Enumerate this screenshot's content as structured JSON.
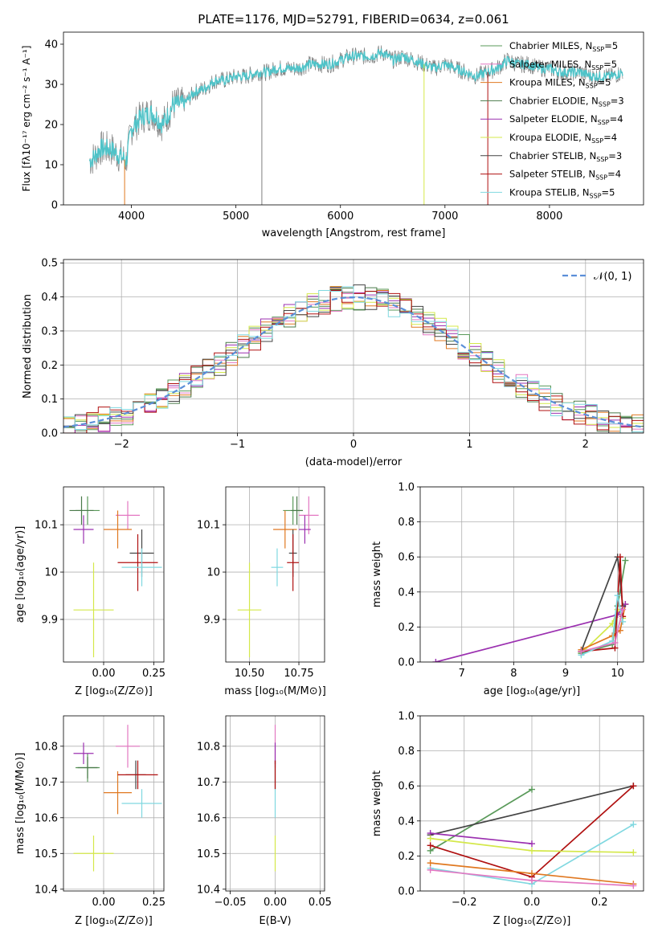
{
  "title": "PLATE=1176, MJD=52791, FIBERID=0634, z=0.061",
  "colors": {
    "Chabrier MILES": "#5a9a5a",
    "Salpeter MILES": "#e377c2",
    "Kroupa MILES": "#e07820",
    "Chabrier ELODIE": "#4a7a4a",
    "Salpeter ELODIE": "#9b30b0",
    "Kroupa ELODIE": "#d4e84a",
    "Chabrier STELIB": "#444444",
    "Salpeter STELIB": "#b01010",
    "Kroupa STELIB": "#80d8e0",
    "model_line": "#4fc3c8",
    "data_line": "#7f7f7f",
    "gaussian": "#5b8fd8"
  },
  "chart_data": [
    {
      "type": "line",
      "id": "spectrum",
      "xlabel": "wavelength [Angstrom, rest frame]",
      "ylabel": "Flux [fλ10⁻¹⁷ erg cm⁻² s⁻¹ A⁻¹]",
      "xlim": [
        3350,
        8900
      ],
      "ylim": [
        0,
        43
      ],
      "xticks": [
        4000,
        5000,
        6000,
        7000,
        8000
      ],
      "yticks": [
        0,
        10,
        20,
        30,
        40
      ],
      "continuum": {
        "x": [
          3600,
          3650,
          3700,
          3800,
          3900,
          3950,
          4000,
          4100,
          4200,
          4300,
          4400,
          4500,
          4600,
          4700,
          4800,
          4900,
          5000,
          5100,
          5200,
          5300,
          5400,
          5500,
          5600,
          5700,
          5800,
          5900,
          6000,
          6100,
          6200,
          6300,
          6400,
          6500,
          6600,
          6700,
          6800,
          6900,
          7000,
          7100,
          7200,
          7300,
          7400,
          7500,
          7600,
          7700,
          7800,
          7900,
          8000,
          8100,
          8200,
          8300,
          8400,
          8500,
          8600,
          8700
        ],
        "y": [
          11,
          12,
          14,
          14,
          12,
          11,
          19,
          22,
          23,
          20,
          25,
          25,
          28,
          29,
          31,
          31,
          32,
          32,
          33,
          33,
          34,
          34,
          34,
          35,
          35,
          35,
          36,
          37,
          37,
          37,
          38,
          36,
          37,
          36,
          35,
          34,
          35,
          34,
          33,
          32,
          33,
          34,
          36,
          35,
          35,
          34,
          34,
          33,
          33,
          33,
          32,
          32,
          32,
          33
        ]
      },
      "series": [
        "Chabrier MILES, N_SSP=5",
        "Salpeter MILES, N_SSP=5",
        "Kroupa MILES, N_SSP=5",
        "Chabrier ELODIE, N_SSP=3",
        "Salpeter ELODIE, N_SSP=4",
        "Kroupa ELODIE, N_SSP=4",
        "Chabrier STELIB, N_SSP=3",
        "Salpeter STELIB, N_SSP=4",
        "Kroupa STELIB, N_SSP=5"
      ],
      "legend": "top-right"
    },
    {
      "type": "histogram",
      "id": "residuals",
      "xlabel": "(data-model)/error",
      "ylabel": "Normed distribution",
      "xlim": [
        -2.5,
        2.5
      ],
      "ylim": [
        0,
        0.51
      ],
      "xticks": [
        -2,
        -1,
        0,
        1,
        2
      ],
      "yticks": [
        0.0,
        0.1,
        0.2,
        0.3,
        0.4,
        0.5
      ],
      "gaussian_label": "𝒩(0, 1)",
      "bin_width": 0.1,
      "grid": true
    },
    {
      "type": "scatter",
      "id": "age_vs_Z",
      "xlabel": "Z [log₁₀(Z/Z⊙)]",
      "ylabel": "age  [log₁₀(age/yr)]",
      "xlim": [
        -0.2,
        0.3
      ],
      "ylim": [
        9.81,
        10.18
      ],
      "xticks": [
        0.0,
        0.25
      ],
      "xticklabels": [
        "0.00",
        "0.25"
      ],
      "yticks": [
        9.9,
        10.0,
        10.1
      ],
      "points": [
        {
          "model": "Chabrier MILES",
          "x": -0.08,
          "y": 10.13,
          "xerr": 0.06,
          "yerr": 0.03
        },
        {
          "model": "Salpeter MILES",
          "x": 0.12,
          "y": 10.12,
          "xerr": 0.06,
          "yerr": 0.03
        },
        {
          "model": "Kroupa MILES",
          "x": 0.07,
          "y": 10.09,
          "xerr": 0.07,
          "yerr": 0.04
        },
        {
          "model": "Chabrier ELODIE",
          "x": -0.11,
          "y": 10.13,
          "xerr": 0.06,
          "yerr": 0.03
        },
        {
          "model": "Salpeter ELODIE",
          "x": -0.1,
          "y": 10.09,
          "xerr": 0.05,
          "yerr": 0.03
        },
        {
          "model": "Kroupa ELODIE",
          "x": -0.05,
          "y": 9.92,
          "xerr": 0.1,
          "yerr": 0.1
        },
        {
          "model": "Chabrier STELIB",
          "x": 0.19,
          "y": 10.04,
          "xerr": 0.06,
          "yerr": 0.05
        },
        {
          "model": "Salpeter STELIB",
          "x": 0.17,
          "y": 10.02,
          "xerr": 0.1,
          "yerr": 0.06
        },
        {
          "model": "Kroupa STELIB",
          "x": 0.19,
          "y": 10.01,
          "xerr": 0.1,
          "yerr": 0.04
        }
      ]
    },
    {
      "type": "scatter",
      "id": "age_vs_mass",
      "xlabel": "mass [log₁₀(M/M⊙)]",
      "xlim": [
        10.38,
        10.88
      ],
      "ylim": [
        9.81,
        10.18
      ],
      "xticks": [
        10.5,
        10.75
      ],
      "xticklabels": [
        "10.50",
        "10.75"
      ],
      "yticks": [
        9.9,
        10.0,
        10.1
      ],
      "points": [
        {
          "model": "Chabrier MILES",
          "x": 10.72,
          "y": 10.13,
          "xerr": 0.05,
          "yerr": 0.03
        },
        {
          "model": "Salpeter MILES",
          "x": 10.8,
          "y": 10.12,
          "xerr": 0.05,
          "yerr": 0.04
        },
        {
          "model": "Kroupa MILES",
          "x": 10.68,
          "y": 10.09,
          "xerr": 0.06,
          "yerr": 0.04
        },
        {
          "model": "Chabrier ELODIE",
          "x": 10.74,
          "y": 10.13,
          "xerr": 0.03,
          "yerr": 0.03
        },
        {
          "model": "Salpeter ELODIE",
          "x": 10.78,
          "y": 10.09,
          "xerr": 0.03,
          "yerr": 0.03
        },
        {
          "model": "Kroupa ELODIE",
          "x": 10.5,
          "y": 9.92,
          "xerr": 0.06,
          "yerr": 0.1
        },
        {
          "model": "Chabrier STELIB",
          "x": 10.72,
          "y": 10.04,
          "xerr": 0.02,
          "yerr": 0.05
        },
        {
          "model": "Salpeter STELIB",
          "x": 10.72,
          "y": 10.02,
          "xerr": 0.03,
          "yerr": 0.06
        },
        {
          "model": "Kroupa STELIB",
          "x": 10.64,
          "y": 10.01,
          "xerr": 0.03,
          "yerr": 0.04
        }
      ]
    },
    {
      "type": "line",
      "id": "weight_vs_age",
      "xlabel": "age  [log₁₀(age/yr)]",
      "ylabel": "mass weight",
      "xlim": [
        6.2,
        10.5
      ],
      "ylim": [
        0,
        1
      ],
      "xticks": [
        7,
        8,
        9,
        10
      ],
      "yticks": [
        0.0,
        0.2,
        0.4,
        0.6,
        0.8,
        1.0
      ],
      "series": [
        {
          "model": "Kroupa ELODIE",
          "x": [
            9.3,
            9.9,
            10.0,
            10.1
          ],
          "y": [
            0.05,
            0.22,
            0.3,
            0.25
          ]
        },
        {
          "model": "Chabrier MILES",
          "x": [
            9.3,
            9.9,
            10.0,
            10.15
          ],
          "y": [
            0.05,
            0.1,
            0.32,
            0.58
          ]
        },
        {
          "model": "Kroupa MILES",
          "x": [
            9.3,
            9.9,
            10.05,
            10.15
          ],
          "y": [
            0.07,
            0.15,
            0.18,
            0.33
          ]
        },
        {
          "model": "Salpeter ELODIE",
          "x": [
            6.5,
            10.0,
            10.15
          ],
          "y": [
            0.0,
            0.27,
            0.33
          ]
        },
        {
          "model": "Chabrier STELIB",
          "x": [
            9.3,
            10.0,
            10.1
          ],
          "y": [
            0.06,
            0.6,
            0.32
          ]
        },
        {
          "model": "Salpeter STELIB",
          "x": [
            9.3,
            9.95,
            10.05,
            10.1
          ],
          "y": [
            0.06,
            0.08,
            0.6,
            0.26
          ]
        },
        {
          "model": "Kroupa STELIB",
          "x": [
            9.3,
            9.9,
            10.0,
            10.1
          ],
          "y": [
            0.04,
            0.12,
            0.38,
            0.23
          ]
        },
        {
          "model": "Salpeter MILES",
          "x": [
            9.3,
            9.95,
            10.1
          ],
          "y": [
            0.06,
            0.11,
            0.3
          ]
        }
      ]
    },
    {
      "type": "scatter",
      "id": "mass_vs_Z",
      "xlabel": "Z [log₁₀(Z/Z⊙)]",
      "ylabel": "mass [log₁₀(M/M⊙)]",
      "xlim": [
        -0.2,
        0.3
      ],
      "ylim": [
        10.395,
        10.885
      ],
      "xticks": [
        0.0,
        0.25
      ],
      "xticklabels": [
        "0.00",
        "0.25"
      ],
      "yticks": [
        10.4,
        10.5,
        10.6,
        10.7,
        10.8
      ],
      "points": [
        {
          "model": "Chabrier MILES",
          "x": -0.08,
          "y": 10.74,
          "xerr": 0.06,
          "yerr": 0.04
        },
        {
          "model": "Salpeter MILES",
          "x": 0.12,
          "y": 10.8,
          "xerr": 0.06,
          "yerr": 0.06
        },
        {
          "model": "Kroupa MILES",
          "x": 0.07,
          "y": 10.67,
          "xerr": 0.07,
          "yerr": 0.06
        },
        {
          "model": "Chabrier ELODIE",
          "x": -0.08,
          "y": 10.74,
          "xerr": 0.05,
          "yerr": 0.03
        },
        {
          "model": "Salpeter ELODIE",
          "x": -0.1,
          "y": 10.78,
          "xerr": 0.05,
          "yerr": 0.03
        },
        {
          "model": "Kroupa ELODIE",
          "x": -0.05,
          "y": 10.5,
          "xerr": 0.1,
          "yerr": 0.05
        },
        {
          "model": "Chabrier STELIB",
          "x": 0.16,
          "y": 10.72,
          "xerr": 0.05,
          "yerr": 0.04
        },
        {
          "model": "Salpeter STELIB",
          "x": 0.17,
          "y": 10.72,
          "xerr": 0.1,
          "yerr": 0.04
        },
        {
          "model": "Kroupa STELIB",
          "x": 0.19,
          "y": 10.64,
          "xerr": 0.1,
          "yerr": 0.04
        }
      ]
    },
    {
      "type": "scatter",
      "id": "mass_vs_EBV",
      "xlabel": "E(B-V)",
      "xlim": [
        -0.055,
        0.055
      ],
      "ylim": [
        10.395,
        10.885
      ],
      "xticks": [
        -0.05,
        0.0,
        0.05
      ],
      "xticklabels": [
        "−0.05",
        "0.00",
        "0.05"
      ],
      "yticks": [
        10.4,
        10.5,
        10.6,
        10.7,
        10.8
      ],
      "points": [
        {
          "model": "Salpeter MILES",
          "x": 0.0,
          "y": 10.8,
          "xerr": 0,
          "yerr": 0.06
        },
        {
          "model": "Salpeter ELODIE",
          "x": 0.0,
          "y": 10.78,
          "xerr": 0,
          "yerr": 0.03
        },
        {
          "model": "Chabrier STELIB",
          "x": 0.0,
          "y": 10.72,
          "xerr": 0,
          "yerr": 0.04
        },
        {
          "model": "Salpeter STELIB",
          "x": 0.0,
          "y": 10.72,
          "xerr": 0,
          "yerr": 0.04
        },
        {
          "model": "Kroupa STELIB",
          "x": 0.0,
          "y": 10.64,
          "xerr": 0,
          "yerr": 0.04
        },
        {
          "model": "Kroupa ELODIE",
          "x": 0.0,
          "y": 10.5,
          "xerr": 0,
          "yerr": 0.05
        }
      ]
    },
    {
      "type": "line",
      "id": "weight_vs_Z",
      "xlabel": "Z [log₁₀(Z/Z⊙)]",
      "ylabel": "mass weight",
      "xlim": [
        -0.33,
        0.33
      ],
      "ylim": [
        0,
        1
      ],
      "xticks": [
        -0.2,
        0.0,
        0.2
      ],
      "xticklabels": [
        "−0.2",
        "0.0",
        "0.2"
      ],
      "yticks": [
        0.0,
        0.2,
        0.4,
        0.6,
        0.8,
        1.0
      ],
      "series": [
        {
          "model": "Chabrier MILES",
          "x": [
            -0.3,
            0.0
          ],
          "y": [
            0.23,
            0.58
          ]
        },
        {
          "model": "Chabrier STELIB",
          "x": [
            -0.3,
            0.3
          ],
          "y": [
            0.32,
            0.6
          ]
        },
        {
          "model": "Salpeter STELIB",
          "x": [
            -0.3,
            0.0,
            0.3
          ],
          "y": [
            0.26,
            0.08,
            0.6
          ]
        },
        {
          "model": "Salpeter ELODIE",
          "x": [
            -0.3,
            0.0
          ],
          "y": [
            0.33,
            0.27
          ]
        },
        {
          "model": "Kroupa ELODIE",
          "x": [
            -0.3,
            0.0,
            0.3
          ],
          "y": [
            0.3,
            0.23,
            0.22
          ]
        },
        {
          "model": "Kroupa STELIB",
          "x": [
            -0.3,
            0.0,
            0.3
          ],
          "y": [
            0.13,
            0.04,
            0.38
          ]
        },
        {
          "model": "Kroupa MILES",
          "x": [
            -0.3,
            0.0,
            0.3
          ],
          "y": [
            0.16,
            0.1,
            0.04
          ]
        },
        {
          "model": "Salpeter MILES",
          "x": [
            -0.3,
            0.0,
            0.3
          ],
          "y": [
            0.12,
            0.06,
            0.03
          ]
        }
      ]
    }
  ]
}
